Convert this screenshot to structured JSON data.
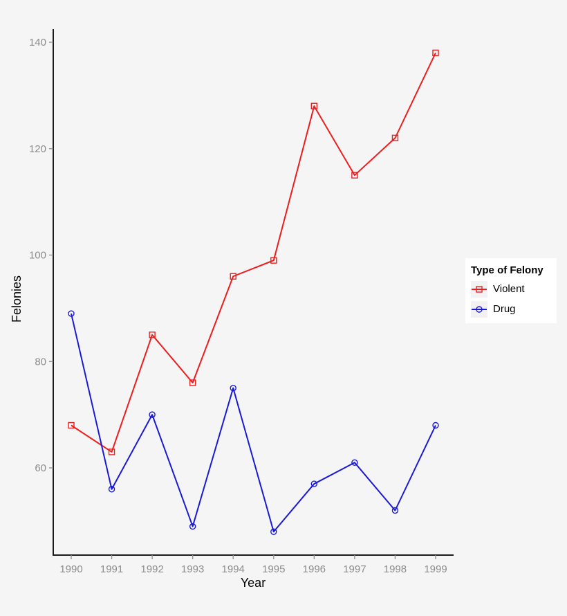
{
  "chart_data": {
    "type": "line",
    "title": "",
    "xlabel": "Year",
    "ylabel": "Felonies",
    "x": [
      1990,
      1991,
      1992,
      1993,
      1994,
      1995,
      1996,
      1997,
      1998,
      1999
    ],
    "x_tick_labels": [
      "1990",
      "1991",
      "1992",
      "1993",
      "1994",
      "1995",
      "1996",
      "1997",
      "1998",
      "1999"
    ],
    "y_ticks": [
      60,
      80,
      100,
      120,
      140
    ],
    "y_tick_labels": [
      "60",
      "80",
      "100",
      "120",
      "140"
    ],
    "ylim": [
      43,
      142
    ],
    "grid": false,
    "legend_position": "right",
    "legend_title": "Type of Felony",
    "series": [
      {
        "name": "Violent",
        "color": "#ee1c1c",
        "marker": "square",
        "values": [
          68,
          63,
          85,
          76,
          96,
          99,
          128,
          115,
          122,
          138
        ]
      },
      {
        "name": "Drug",
        "color": "#1a1ad6",
        "marker": "circle",
        "values": [
          89,
          56,
          70,
          49,
          75,
          48,
          57,
          61,
          52,
          68
        ]
      }
    ]
  },
  "legend": {
    "title": "Type of Felony",
    "items": [
      {
        "label": "Violent",
        "color": "#ee1c1c",
        "marker": "square-marker"
      },
      {
        "label": "Drug",
        "color": "#1a1ad6",
        "marker": "circle-marker"
      }
    ]
  }
}
